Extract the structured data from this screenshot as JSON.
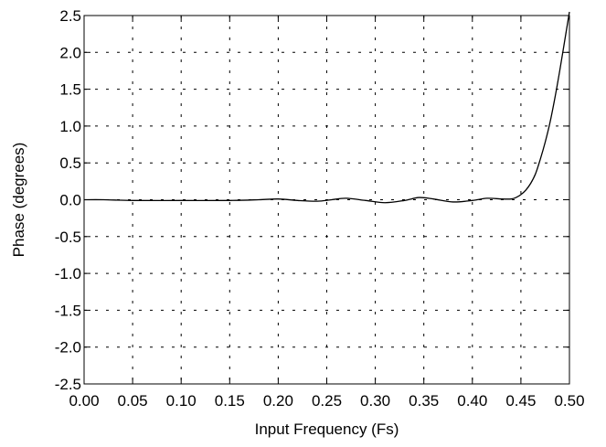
{
  "chart_data": {
    "type": "line",
    "title": "",
    "xlabel": "Input Frequency (Fs)",
    "ylabel": "Phase (degrees)",
    "xlim": [
      0.0,
      0.5
    ],
    "ylim": [
      -2.5,
      2.5
    ],
    "x_ticks": [
      "0.00",
      "0.05",
      "0.10",
      "0.15",
      "0.20",
      "0.25",
      "0.30",
      "0.35",
      "0.40",
      "0.45",
      "0.50"
    ],
    "y_ticks": [
      "2.5",
      "2.0",
      "1.5",
      "1.0",
      "0.5",
      "0.0",
      "-0.5",
      "-1.0",
      "-1.5",
      "-2.0",
      "-2.5"
    ],
    "grid": true,
    "legend": "none",
    "colors": {
      "line": "#000000",
      "grid": "#000000",
      "axis": "#000000",
      "background": "#ffffff"
    },
    "series": [
      {
        "x": [
          0.0,
          0.02,
          0.05,
          0.1,
          0.15,
          0.18,
          0.2,
          0.22,
          0.24,
          0.255,
          0.27,
          0.29,
          0.31,
          0.33,
          0.345,
          0.36,
          0.38,
          0.4,
          0.415,
          0.43,
          0.44,
          0.445,
          0.45,
          0.455,
          0.46,
          0.465,
          0.47,
          0.475,
          0.48,
          0.485,
          0.49,
          0.495,
          0.5
        ],
        "values": [
          0.0,
          0.0,
          -0.01,
          -0.01,
          -0.01,
          0.0,
          0.01,
          -0.01,
          -0.02,
          0.0,
          0.02,
          -0.01,
          -0.04,
          -0.01,
          0.03,
          0.01,
          -0.03,
          -0.01,
          0.02,
          0.01,
          0.01,
          0.03,
          0.07,
          0.13,
          0.22,
          0.35,
          0.55,
          0.78,
          1.05,
          1.38,
          1.75,
          2.15,
          2.55
        ]
      }
    ]
  }
}
